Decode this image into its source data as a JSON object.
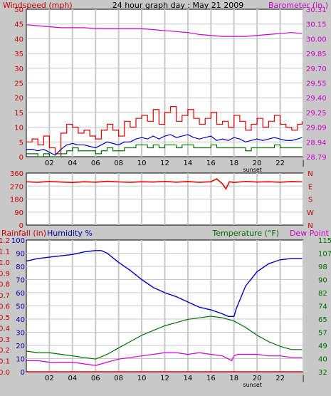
{
  "header": {
    "left_label": "Windspeed (mph)",
    "title": "24 hour graph day : May 21 2009",
    "right_label": "Barometer (in.)"
  },
  "colors": {
    "frame_bg": "#c8c8c8",
    "plot_bg": "#ffffff",
    "grid": "#c8c8c8",
    "windspeed": "#e00000",
    "windspeed_avg": "#0000c0",
    "windspeed_low": "#007000",
    "barometer": "#d000d0",
    "direction": "#e00000",
    "humidity": "#0000c0",
    "temperature": "#007000",
    "dew_point": "#d000d0",
    "rainfall": "#e00000",
    "axis_red": "#cc0000",
    "axis_blue": "#0000aa",
    "axis_green": "#007000",
    "axis_magenta": "#cc00cc"
  },
  "x_axis": {
    "tick_labels": [
      "02",
      "04",
      "06",
      "08",
      "10",
      "12",
      "14",
      "16",
      "18",
      "20",
      "22",
      "|"
    ],
    "sunset_label": "sunset"
  },
  "chart_data": [
    {
      "type": "line",
      "name": "wind-barometer",
      "xlim": [
        0,
        24
      ],
      "left_axis": {
        "label": "Windspeed (mph)",
        "ticks": [
          "0",
          "5",
          "10",
          "15",
          "20",
          "25",
          "30",
          "35",
          "40",
          "45",
          "50"
        ],
        "ylim": [
          0,
          50
        ]
      },
      "right_axis": {
        "label": "Barometer (in.)",
        "ticks": [
          "28.79",
          "28.94",
          "29.09",
          "29.25",
          "29.40",
          "29.55",
          "29.70",
          "29.85",
          "30.00",
          "30.15",
          "30.31"
        ],
        "ylim": [
          28.79,
          30.31
        ]
      },
      "series": [
        {
          "key": "gust",
          "axis": "left",
          "x": [
            0,
            0.5,
            1,
            1.5,
            2,
            2.5,
            3,
            3.5,
            4,
            4.5,
            5,
            5.5,
            6,
            6.5,
            7,
            7.5,
            8,
            8.5,
            9,
            9.5,
            10,
            10.5,
            11,
            11.5,
            12,
            12.5,
            13,
            13.5,
            14,
            14.5,
            15,
            15.5,
            16,
            16.5,
            17,
            17.5,
            18,
            18.5,
            19,
            19.5,
            20,
            20.5,
            21,
            21.5,
            22,
            22.5,
            23,
            23.5,
            23.9
          ],
          "values": [
            5,
            6,
            4,
            7,
            3,
            1,
            8,
            11,
            10,
            8,
            9,
            7,
            6,
            9,
            11,
            9,
            7,
            12,
            10,
            13,
            14,
            12,
            16,
            11,
            15,
            17,
            12,
            14,
            16,
            13,
            11,
            13,
            15,
            11,
            12,
            10,
            14,
            12,
            9,
            11,
            13,
            10,
            12,
            14,
            11,
            10,
            9,
            11,
            12
          ]
        },
        {
          "key": "average",
          "axis": "left",
          "x": [
            0,
            0.5,
            1,
            1.5,
            2,
            2.5,
            3,
            3.5,
            4,
            4.5,
            5,
            5.5,
            6,
            6.5,
            7,
            7.5,
            8,
            8.5,
            9,
            9.5,
            10,
            10.5,
            11,
            11.5,
            12,
            12.5,
            13,
            13.5,
            14,
            14.5,
            15,
            15.5,
            16,
            16.5,
            17,
            17.5,
            18,
            18.5,
            19,
            19.5,
            20,
            20.5,
            21,
            21.5,
            22,
            22.5,
            23,
            23.5,
            23.9
          ],
          "values": [
            2.5,
            2.5,
            2,
            2.5,
            1.5,
            0.5,
            2.5,
            4,
            4.5,
            4,
            4,
            3.5,
            3,
            4,
            5,
            4.5,
            4,
            5,
            5,
            6,
            6.5,
            6,
            7,
            6,
            7,
            7.5,
            6.5,
            7,
            7.5,
            6.5,
            6,
            6.5,
            7,
            5.5,
            6,
            5.5,
            6.5,
            6,
            5,
            5.5,
            6,
            5.5,
            6,
            6.5,
            6,
            5.5,
            5.5,
            6,
            6.5
          ]
        },
        {
          "key": "low",
          "axis": "left",
          "x": [
            0,
            0.5,
            1,
            1.5,
            2,
            2.5,
            3,
            3.5,
            4,
            4.5,
            5,
            5.5,
            6,
            6.5,
            7,
            7.5,
            8,
            8.5,
            9,
            9.5,
            10,
            10.5,
            11,
            11.5,
            12,
            12.5,
            13,
            13.5,
            14,
            14.5,
            15,
            15.5,
            16,
            16.5,
            17,
            17.5,
            18,
            18.5,
            19,
            19.5,
            20,
            20.5,
            21,
            21.5,
            22,
            22.5,
            23,
            23.5,
            23.9
          ],
          "values": [
            1,
            1,
            0,
            1,
            0,
            0,
            1,
            2,
            3,
            2,
            2,
            2,
            1,
            2,
            3,
            2,
            2,
            3,
            3,
            4,
            4,
            3,
            4,
            3,
            4,
            4,
            3,
            4,
            4,
            3,
            3,
            3,
            4,
            3,
            3,
            3,
            3,
            3,
            2,
            3,
            3,
            3,
            3,
            4,
            3,
            3,
            3,
            3,
            3
          ]
        },
        {
          "key": "barometer",
          "axis": "right",
          "x": [
            0,
            1,
            2,
            3,
            4,
            5,
            6,
            7,
            8,
            9,
            10,
            11,
            12,
            13,
            14,
            15,
            16,
            17,
            18,
            19,
            20,
            21,
            22,
            23,
            23.9
          ],
          "values": [
            30.15,
            30.14,
            30.13,
            30.12,
            30.12,
            30.12,
            30.11,
            30.11,
            30.11,
            30.11,
            30.11,
            30.1,
            30.09,
            30.08,
            30.07,
            30.05,
            30.04,
            30.03,
            30.03,
            30.03,
            30.04,
            30.05,
            30.06,
            30.07,
            30.06
          ]
        }
      ]
    },
    {
      "type": "line",
      "name": "wind-direction",
      "xlim": [
        0,
        24
      ],
      "left_axis": {
        "ticks": [
          "0",
          "90",
          "180",
          "270",
          "360"
        ],
        "ylim": [
          0,
          360
        ]
      },
      "right_axis": {
        "ticks": [
          "N",
          "W",
          "S",
          "E",
          "N"
        ]
      },
      "series": [
        {
          "key": "direction",
          "axis": "left",
          "x": [
            0,
            1,
            2,
            3,
            4,
            5,
            6,
            7,
            8,
            9,
            10,
            11,
            12,
            13,
            14,
            15,
            16,
            16.5,
            17,
            17.3,
            17.6,
            18,
            19,
            20,
            21,
            22,
            23,
            23.9
          ],
          "values": [
            300,
            296,
            302,
            298,
            295,
            300,
            297,
            303,
            299,
            296,
            300,
            298,
            302,
            297,
            301,
            296,
            300,
            320,
            285,
            250,
            300,
            295,
            302,
            298,
            300,
            297,
            301,
            299
          ]
        }
      ]
    },
    {
      "type": "line",
      "name": "rain-humidity-temperature",
      "xlim": [
        0,
        24
      ],
      "labels": {
        "rainfall": "Rainfall (in)",
        "humidity": "Humidity %",
        "temperature": "Temperature (°F)",
        "dew_point": "Dew Point"
      },
      "humidity_axis": {
        "ticks": [
          "0",
          "10",
          "20",
          "30",
          "40",
          "50",
          "60",
          "70",
          "80",
          "90",
          "100"
        ],
        "ylim": [
          0,
          100
        ]
      },
      "rainfall_axis": {
        "ticks": [
          "0.0",
          "0.1",
          "0.2",
          "0.3",
          "0.4",
          "0.5",
          "0.6",
          "0.7",
          "0.8",
          "0.9",
          "1.0",
          "1.1",
          "1.2"
        ],
        "ylim": [
          0,
          1.2
        ]
      },
      "temperature_axis": {
        "ticks": [
          "32",
          "40",
          "49",
          "57",
          "65",
          "74",
          "82",
          "90",
          "98",
          "107",
          "115"
        ],
        "ylim": [
          32,
          115
        ]
      },
      "series": [
        {
          "key": "humidity",
          "axis": "humidity",
          "x": [
            0,
            1,
            2,
            3,
            4,
            5,
            6,
            6.5,
            7,
            8,
            9,
            10,
            11,
            12,
            13,
            14,
            15,
            16,
            17,
            17.5,
            18,
            18.2,
            19,
            20,
            21,
            22,
            23,
            23.9
          ],
          "values": [
            84,
            86,
            87,
            88,
            89,
            91,
            92,
            92,
            90,
            83,
            77,
            70,
            64,
            60,
            57,
            53,
            49,
            47,
            44,
            42,
            42,
            48,
            65,
            76,
            82,
            85,
            86,
            86
          ]
        },
        {
          "key": "temperature",
          "axis": "temperature",
          "x": [
            0,
            1,
            2,
            3,
            4,
            5,
            6,
            7,
            8,
            9,
            10,
            11,
            12,
            13,
            14,
            15,
            16,
            17,
            18,
            19,
            20,
            21,
            22,
            23,
            23.9
          ],
          "values": [
            45,
            44,
            44,
            43,
            42,
            41,
            40,
            43,
            47,
            51,
            55,
            58,
            61,
            63,
            65,
            66,
            67,
            66,
            64,
            60,
            55,
            51,
            48,
            46,
            46
          ]
        },
        {
          "key": "dew_point",
          "axis": "temperature",
          "x": [
            0,
            1,
            2,
            3,
            4,
            5,
            6,
            7,
            8,
            9,
            10,
            11,
            12,
            13,
            14,
            15,
            16,
            17,
            17.8,
            18,
            18.3,
            19,
            20,
            21,
            22,
            23,
            23.9
          ],
          "values": [
            39,
            39,
            38,
            38,
            38,
            37,
            36,
            38,
            40,
            41,
            42,
            43,
            44,
            44,
            43,
            44,
            43,
            42,
            39,
            42,
            43,
            43,
            43,
            42,
            42,
            41,
            41
          ]
        },
        {
          "key": "rainfall",
          "axis": "rainfall",
          "x": [
            0,
            23.9
          ],
          "values": [
            0,
            0
          ]
        }
      ]
    }
  ]
}
